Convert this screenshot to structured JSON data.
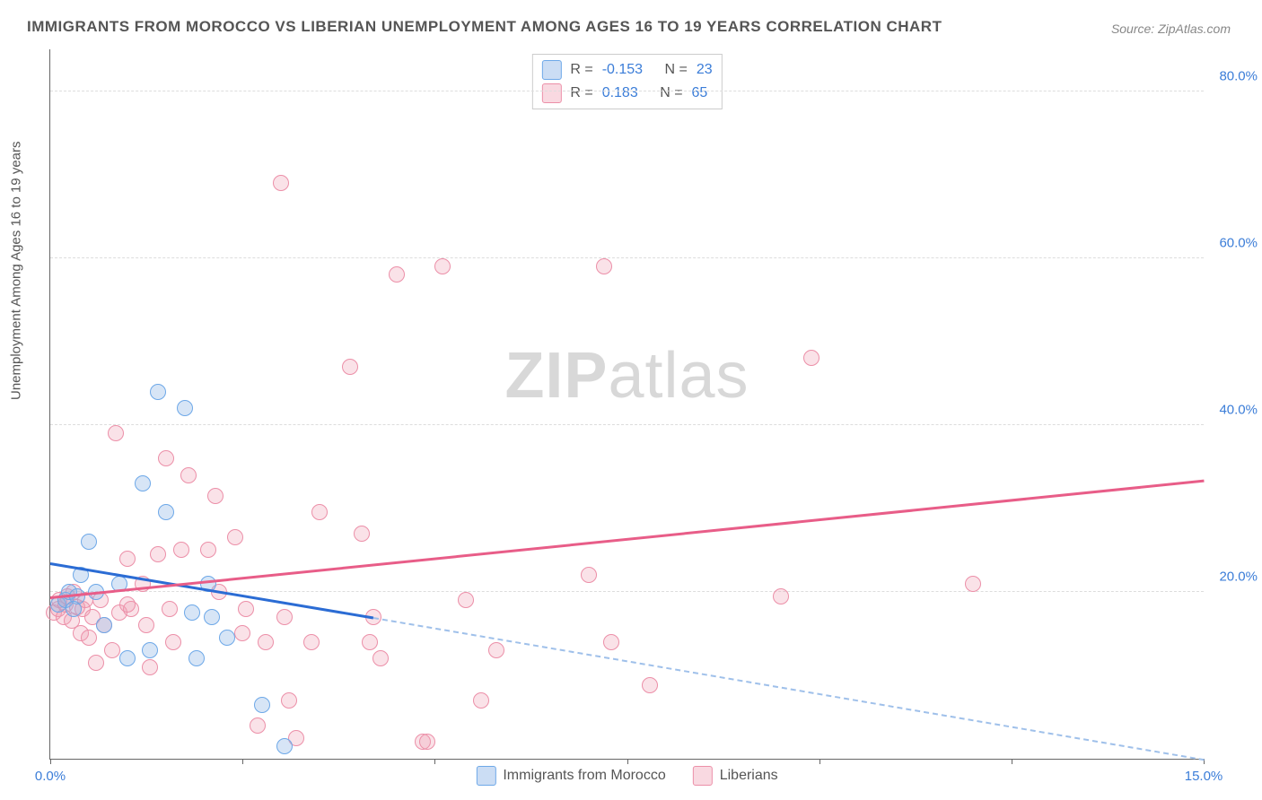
{
  "title": "IMMIGRANTS FROM MOROCCO VS LIBERIAN UNEMPLOYMENT AMONG AGES 16 TO 19 YEARS CORRELATION CHART",
  "source": "Source: ZipAtlas.com",
  "watermark_bold": "ZIP",
  "watermark_light": "atlas",
  "y_axis_label": "Unemployment Among Ages 16 to 19 years",
  "chart": {
    "type": "scatter",
    "xlim": [
      0,
      15
    ],
    "ylim": [
      0,
      85
    ],
    "x_ticks": [
      0,
      2.5,
      5,
      7.5,
      10,
      12.5,
      15
    ],
    "x_tick_labels": {
      "0": "0.0%",
      "15": "15.0%"
    },
    "y_ticks": [
      20,
      40,
      60,
      80
    ],
    "y_tick_labels": {
      "20": "20.0%",
      "40": "40.0%",
      "60": "60.0%",
      "80": "80.0%"
    },
    "background_color": "#ffffff",
    "grid_color": "#dddddd",
    "axis_color": "#666666",
    "tick_label_color": "#3b7dd8",
    "marker_radius": 9,
    "series": {
      "a": {
        "label": "Immigrants from Morocco",
        "fill": "rgba(140,180,230,0.35)",
        "stroke": "#6da8e8",
        "trend_color": "#2b6cd4",
        "r_value": "-0.153",
        "n_value": "23",
        "trend": {
          "x1": 0,
          "y1": 23.5,
          "x2": 4.2,
          "y2": 17.0,
          "solid": true
        },
        "trend_ext": {
          "x1": 4.2,
          "y1": 17.0,
          "x2": 15.0,
          "y2": 0.0
        },
        "points": [
          [
            0.1,
            18.5
          ],
          [
            0.2,
            19.0
          ],
          [
            0.25,
            20.0
          ],
          [
            0.35,
            19.5
          ],
          [
            0.4,
            22.0
          ],
          [
            0.5,
            26.0
          ],
          [
            0.6,
            20.0
          ],
          [
            0.7,
            16.0
          ],
          [
            0.9,
            21.0
          ],
          [
            1.0,
            12.0
          ],
          [
            1.2,
            33.0
          ],
          [
            1.3,
            13.0
          ],
          [
            1.4,
            44.0
          ],
          [
            1.5,
            29.5
          ],
          [
            1.75,
            42.0
          ],
          [
            1.85,
            17.5
          ],
          [
            1.9,
            12.0
          ],
          [
            2.05,
            21.0
          ],
          [
            2.1,
            17.0
          ],
          [
            2.3,
            14.5
          ],
          [
            2.75,
            6.5
          ],
          [
            3.05,
            1.5
          ],
          [
            0.3,
            18.0
          ]
        ]
      },
      "b": {
        "label": "Liberians",
        "fill": "rgba(240,160,180,0.3)",
        "stroke": "#ec8fa8",
        "trend_color": "#e85d88",
        "r_value": "0.183",
        "n_value": "65",
        "trend": {
          "x1": 0,
          "y1": 19.5,
          "x2": 15.0,
          "y2": 33.5,
          "solid": true
        },
        "points": [
          [
            0.05,
            17.5
          ],
          [
            0.1,
            18.0
          ],
          [
            0.12,
            19.0
          ],
          [
            0.18,
            17.0
          ],
          [
            0.2,
            18.5
          ],
          [
            0.22,
            19.5
          ],
          [
            0.28,
            16.5
          ],
          [
            0.3,
            20.0
          ],
          [
            0.4,
            15.0
          ],
          [
            0.42,
            18.0
          ],
          [
            0.5,
            14.5
          ],
          [
            0.55,
            17.0
          ],
          [
            0.6,
            11.5
          ],
          [
            0.65,
            19.0
          ],
          [
            0.7,
            16.0
          ],
          [
            0.8,
            13.0
          ],
          [
            0.85,
            39.0
          ],
          [
            0.9,
            17.5
          ],
          [
            1.0,
            24.0
          ],
          [
            1.05,
            18.0
          ],
          [
            1.2,
            21.0
          ],
          [
            1.25,
            16.0
          ],
          [
            1.3,
            11.0
          ],
          [
            1.4,
            24.5
          ],
          [
            1.5,
            36.0
          ],
          [
            1.55,
            18.0
          ],
          [
            1.6,
            14.0
          ],
          [
            1.7,
            25.0
          ],
          [
            1.8,
            34.0
          ],
          [
            2.05,
            25.0
          ],
          [
            2.15,
            31.5
          ],
          [
            2.2,
            20.0
          ],
          [
            2.4,
            26.5
          ],
          [
            2.5,
            15.0
          ],
          [
            2.55,
            18.0
          ],
          [
            2.7,
            4.0
          ],
          [
            2.8,
            14.0
          ],
          [
            3.0,
            69.0
          ],
          [
            3.05,
            17.0
          ],
          [
            3.1,
            7.0
          ],
          [
            3.2,
            2.5
          ],
          [
            3.4,
            14.0
          ],
          [
            3.5,
            29.5
          ],
          [
            3.9,
            47.0
          ],
          [
            4.05,
            27.0
          ],
          [
            4.15,
            14.0
          ],
          [
            4.2,
            17.0
          ],
          [
            4.3,
            12.0
          ],
          [
            4.5,
            58.0
          ],
          [
            4.85,
            2.0
          ],
          [
            4.9,
            2.0
          ],
          [
            5.1,
            59.0
          ],
          [
            5.4,
            19.0
          ],
          [
            5.6,
            7.0
          ],
          [
            5.8,
            13.0
          ],
          [
            7.0,
            22.0
          ],
          [
            7.2,
            59.0
          ],
          [
            7.3,
            14.0
          ],
          [
            7.8,
            8.8
          ],
          [
            9.5,
            19.5
          ],
          [
            9.9,
            48.0
          ],
          [
            12.0,
            21.0
          ],
          [
            1.0,
            18.5
          ],
          [
            0.35,
            18.2
          ],
          [
            0.45,
            19.0
          ]
        ]
      }
    }
  },
  "legend": {
    "r_label": "R =",
    "n_label": "N ="
  }
}
